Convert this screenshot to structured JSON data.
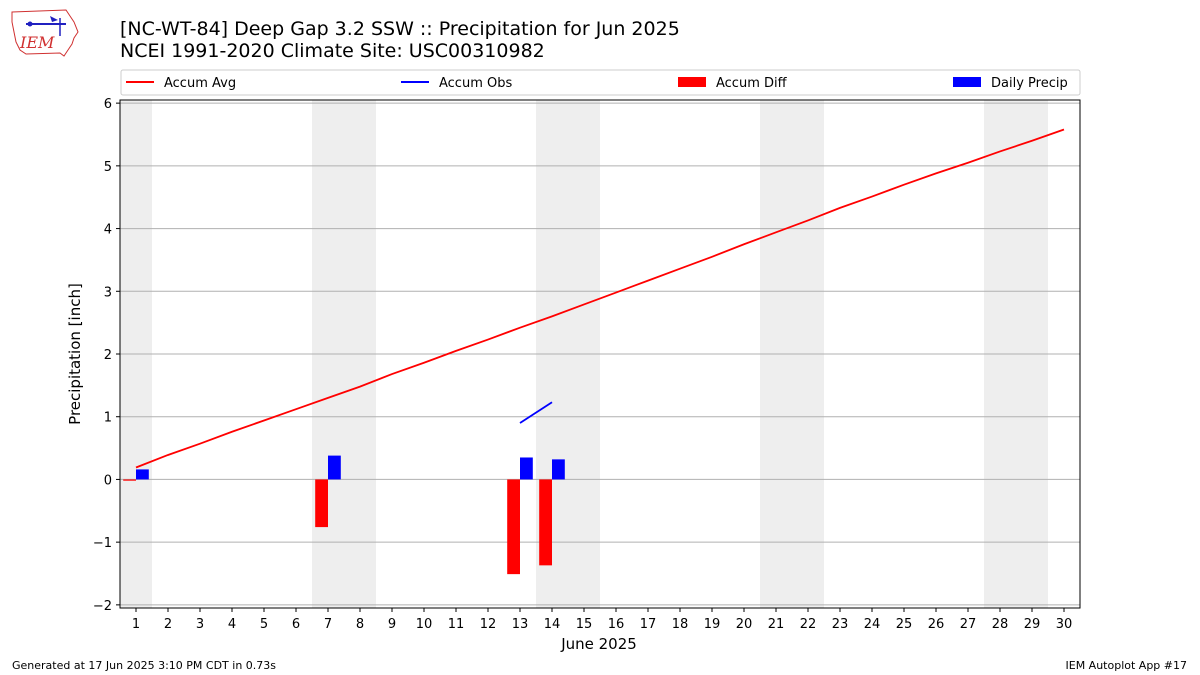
{
  "header": {
    "title_line1": "[NC-WT-84] Deep Gap 3.2 SSW :: Precipitation for Jun 2025",
    "title_line2": "NCEI 1991-2020 Climate Site: USC00310982",
    "logo_text": "IEM"
  },
  "footer": {
    "generated": "Generated at 17 Jun 2025 3:10 PM CDT in 0.73s",
    "app": "IEM Autoplot App #17"
  },
  "chart_data": {
    "type": "line",
    "xlabel": "June 2025",
    "ylabel": "Precipitation [inch]",
    "xlim": [
      0.5,
      30.5
    ],
    "ylim": [
      -2.05,
      6.05
    ],
    "yticks": [
      -2,
      -1,
      0,
      1,
      2,
      3,
      4,
      5,
      6
    ],
    "ytick_labels": [
      "−2",
      "−1",
      "0",
      "1",
      "2",
      "3",
      "4",
      "5",
      "6"
    ],
    "x": [
      1,
      2,
      3,
      4,
      5,
      6,
      7,
      8,
      9,
      10,
      11,
      12,
      13,
      14,
      15,
      16,
      17,
      18,
      19,
      20,
      21,
      22,
      23,
      24,
      25,
      26,
      27,
      28,
      29,
      30
    ],
    "grid": "y",
    "legend_placement": "top, horizontal, above plot",
    "weekend_shading": [
      [
        0.5,
        1.5
      ],
      [
        6.5,
        8.5
      ],
      [
        13.5,
        15.5
      ],
      [
        20.5,
        22.5
      ],
      [
        27.5,
        29.5
      ]
    ],
    "series": [
      {
        "name": "Accum Avg",
        "kind": "line",
        "color": "#ff0000",
        "values": [
          0.19,
          0.39,
          0.57,
          0.76,
          0.94,
          1.12,
          1.3,
          1.48,
          1.68,
          1.86,
          2.05,
          2.23,
          2.42,
          2.6,
          2.79,
          2.98,
          3.17,
          3.36,
          3.55,
          3.75,
          3.94,
          4.13,
          4.33,
          4.51,
          4.7,
          4.88,
          5.05,
          5.23,
          5.4,
          5.58
        ]
      },
      {
        "name": "Accum Obs",
        "kind": "line",
        "color": "#0000ff",
        "x": [
          13,
          14
        ],
        "values": [
          0.9,
          1.23
        ]
      },
      {
        "name": "Accum Diff",
        "kind": "bar",
        "color": "#ff0000",
        "x": [
          1,
          7,
          13,
          14
        ],
        "values": [
          -0.02,
          -0.76,
          -1.51,
          -1.37
        ]
      },
      {
        "name": "Daily Precip",
        "kind": "bar",
        "color": "#0000ff",
        "x": [
          1,
          7,
          13,
          14
        ],
        "values": [
          0.16,
          0.38,
          0.35,
          0.32
        ]
      }
    ]
  }
}
